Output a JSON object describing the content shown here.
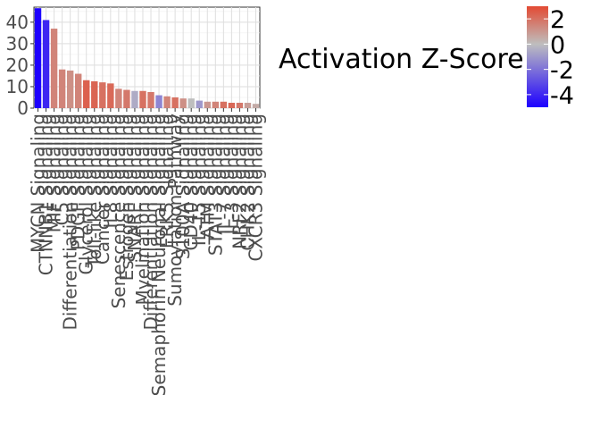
{
  "chart_data": {
    "type": "bar",
    "title": "",
    "xlabel": "",
    "ylabel": "",
    "ylim": [
      0,
      47
    ],
    "yticks": [
      0,
      10,
      20,
      30,
      40
    ],
    "grid": true,
    "legend_placement": "right",
    "categories": [
      "MYCN Signaling",
      "CTNNB1 Signaling",
      "MIF Signaling",
      "C5 Signaling",
      "Differentiation Signaling",
      "PDGF Signaling",
      "Glycerol Signaling",
      "Toll-like Signaling",
      "Cancer Signaling",
      "IL8 Signaling",
      "Senescence Signaling",
      "Estrogen Signaling",
      "SNARE Signaling",
      "Myelination Signaling",
      "Differentiation Signaling",
      "Semaphorin Neuronal Signaling",
      "ERK5 Signaling",
      "Sumoylation Pathway",
      "S100A Signaling",
      "CD40 Signaling",
      "IL-15 Signaling",
      "ATM Signaling",
      "STAT3 Signaling",
      "IL-7 Signaling",
      "IL-3 Signaling",
      "NRF2 Signaling",
      "CHK2 Signaling",
      "CXCR3 Signaling"
    ],
    "values": [
      46.5,
      41,
      37,
      18,
      17.5,
      16,
      13,
      12.5,
      12,
      11.5,
      9,
      8.5,
      8,
      8,
      7.5,
      6,
      5.5,
      5,
      4.5,
      4.5,
      3.5,
      3,
      3,
      3,
      2.5,
      2.5,
      2.5,
      2
    ],
    "zscores": [
      -5,
      -4,
      1.5,
      1.5,
      1.2,
      1.5,
      2.4,
      2.3,
      2.0,
      2.2,
      1.5,
      1.8,
      -0.5,
      2.0,
      1.8,
      -1.5,
      1.5,
      2.0,
      1.2,
      0.0,
      -1.0,
      1.0,
      1.5,
      2.0,
      2.2,
      1.8,
      0.8,
      0.5
    ],
    "legend": {
      "title": "Activation Z-Score",
      "breaks": [
        2,
        0,
        -2,
        -4
      ],
      "break_labels": [
        "2",
        "0",
        "-2",
        "-4"
      ],
      "range": [
        -5,
        3
      ],
      "colors": {
        "low": "#1d00ff",
        "mid": "#bebebe",
        "high": "#e34a33"
      }
    }
  }
}
